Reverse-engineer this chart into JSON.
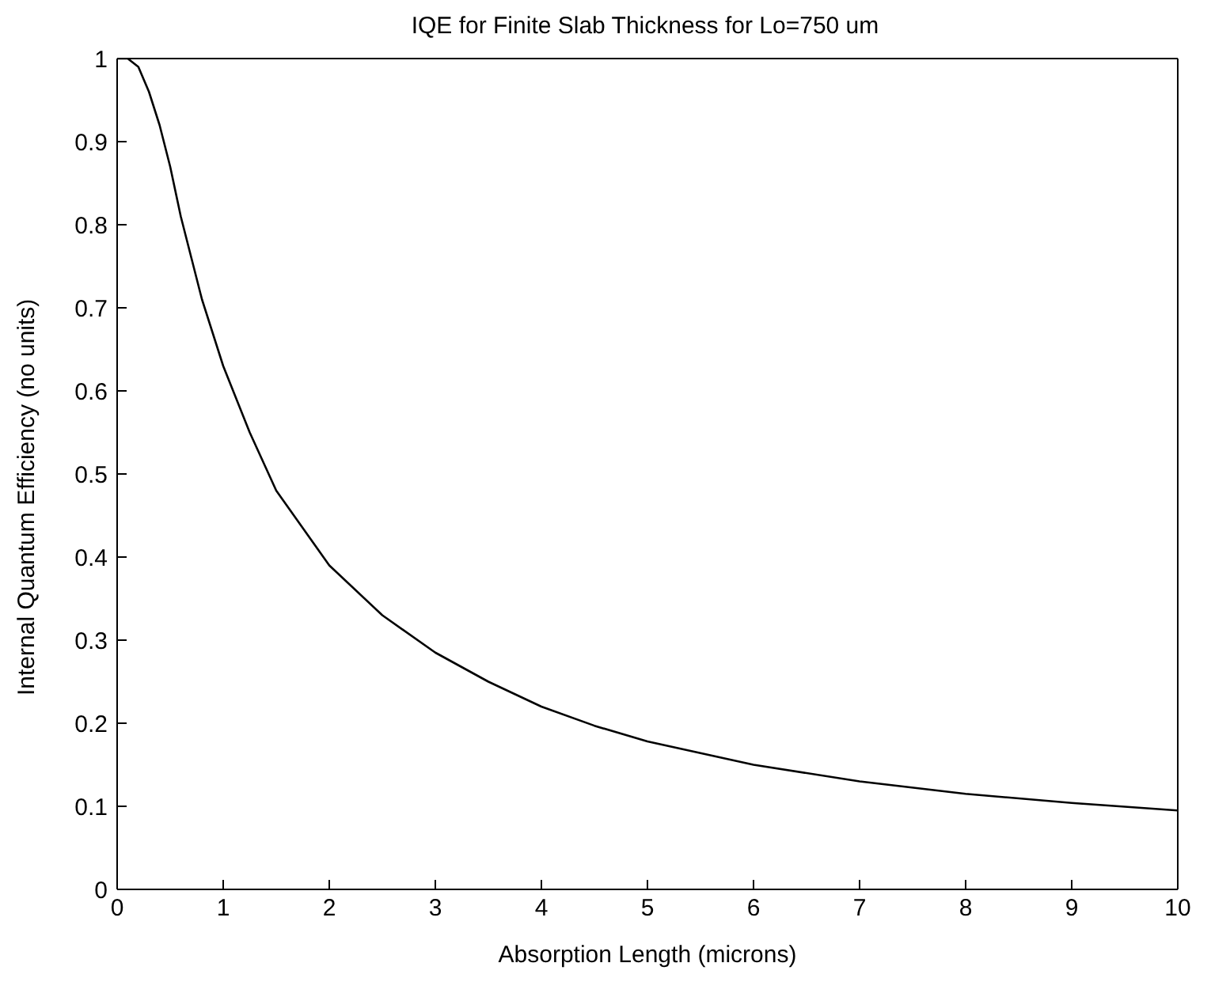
{
  "chart_data": {
    "type": "line",
    "title": "IQE for Finite Slab Thickness for Lo=750 um",
    "xlabel": "Absorption Length (microns)",
    "ylabel": "Internal Quantum Efficiency (no units)",
    "x": [
      0,
      0.1,
      0.2,
      0.3,
      0.4,
      0.5,
      0.6,
      0.7,
      0.8,
      1.0,
      1.25,
      1.5,
      2,
      2.5,
      3,
      3.5,
      4,
      4.5,
      5,
      6,
      7,
      8,
      9,
      10
    ],
    "series": [
      {
        "color": "#000000",
        "values": [
          1,
          1,
          0.99,
          0.96,
          0.92,
          0.87,
          0.81,
          0.76,
          0.71,
          0.63,
          0.55,
          0.48,
          0.39,
          0.33,
          0.285,
          0.25,
          0.22,
          0.197,
          0.178,
          0.15,
          0.13,
          0.115,
          0.104,
          0.095
        ]
      }
    ],
    "xlim": [
      0,
      10
    ],
    "xticks": [
      0,
      1,
      2,
      3,
      4,
      5,
      6,
      7,
      8,
      9,
      10
    ],
    "ylim": [
      0,
      1
    ],
    "yticks": [
      0,
      0.1,
      0.2,
      0.3,
      0.4,
      0.5,
      0.6,
      0.7,
      0.8,
      0.9,
      1
    ],
    "grid": false,
    "legend": false,
    "marker": "none",
    "line_style": "solid"
  }
}
